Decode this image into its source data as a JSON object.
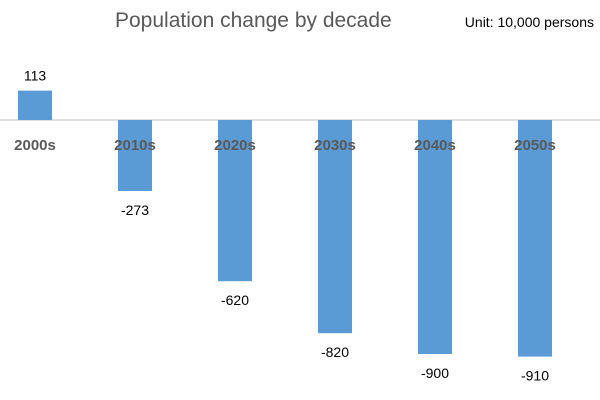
{
  "chart_data": {
    "type": "bar",
    "title": "Population change by decade",
    "unit_note": "Unit: 10,000 persons",
    "categories": [
      "2000s",
      "2010s",
      "2020s",
      "2030s",
      "2040s",
      "2050s"
    ],
    "values": [
      113,
      -273,
      -620,
      -820,
      -900,
      -910
    ],
    "data_labels": [
      "113",
      "-273",
      "-620",
      "-820",
      "-900",
      "-910"
    ],
    "xlabel": "",
    "ylabel": "",
    "ylim": [
      -980,
      300
    ],
    "grid": false,
    "legend": "none",
    "bar_color": "#5b9bd5",
    "axis_color": "#bfbfbf"
  }
}
